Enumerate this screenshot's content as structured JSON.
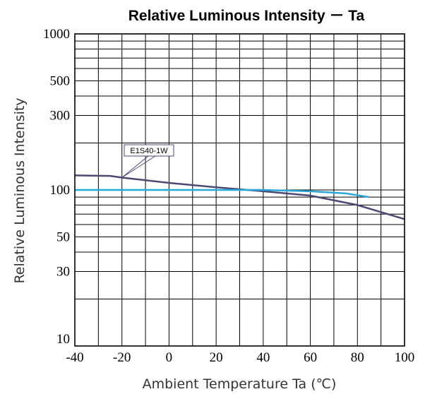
{
  "chart_data": {
    "type": "line",
    "title": "Relative Luminous Intensity － Ta",
    "xlabel": "Ambient Temperature  Ta  (℃)",
    "ylabel": "Relative Luminous Intensity",
    "xlim": [
      -40,
      100
    ],
    "ylim": [
      10,
      1000
    ],
    "y_scale": "log",
    "grid": true,
    "x_ticks": [
      -40,
      -20,
      0,
      20,
      40,
      60,
      80,
      100
    ],
    "x_tick_labels": [
      "-40",
      "-20",
      "0",
      "20",
      "40",
      "60",
      "80",
      "100"
    ],
    "y_ticks": [
      10,
      30,
      50,
      100,
      300,
      500,
      1000
    ],
    "y_tick_labels": [
      "10",
      "30",
      "50",
      "100",
      "300",
      "500",
      "1000"
    ],
    "series": [
      {
        "name": "E1S40-1W",
        "color": "#4a4a72",
        "x": [
          -40,
          -25,
          -20,
          0,
          20,
          40,
          60,
          80,
          100
        ],
        "y": [
          124,
          123,
          120,
          111,
          104,
          98,
          92,
          80,
          65
        ]
      },
      {
        "color": "#2ba7d9",
        "x": [
          -40,
          -20,
          0,
          20,
          40,
          60,
          75,
          85
        ],
        "y": [
          100,
          100,
          100,
          100,
          100,
          98,
          95,
          90
        ]
      }
    ],
    "annotation": {
      "text": "E1S40-1W",
      "series_index": 0,
      "x": -20,
      "y": 120
    }
  }
}
